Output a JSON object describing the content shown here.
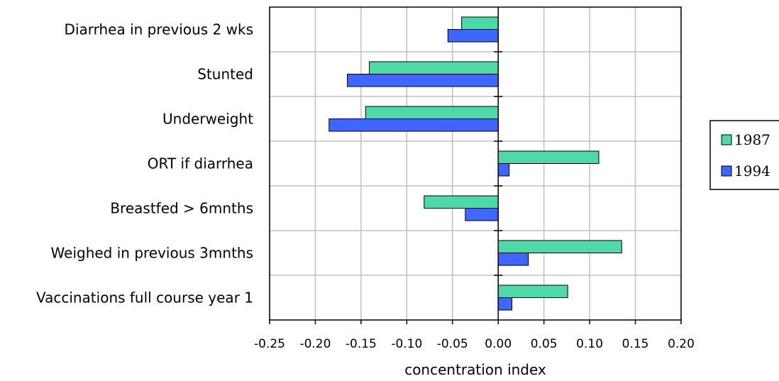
{
  "chart_data": {
    "type": "bar",
    "orientation": "horizontal",
    "categories": [
      "Diarrhea in previous 2 wks",
      "Stunted",
      "Underweight",
      "ORT if diarrhea",
      "Breastfed > 6mnths",
      "Weighed in previous 3mnths",
      "Vaccinations full course year 1"
    ],
    "series": [
      {
        "name": "1987",
        "color": "#4fd8a8",
        "values": [
          -0.04,
          -0.141,
          -0.145,
          0.11,
          -0.081,
          0.135,
          0.076
        ]
      },
      {
        "name": "1994",
        "color": "#3f66ff",
        "values": [
          -0.055,
          -0.165,
          -0.185,
          0.012,
          -0.036,
          0.033,
          0.015
        ]
      }
    ],
    "xlabel": "concentration index",
    "xlim": [
      -0.25,
      0.2
    ],
    "xticks": [
      "-0.25",
      "-0.20",
      "-0.15",
      "-0.10",
      "-0.05",
      "0.00",
      "0.05",
      "0.10",
      "0.15",
      "0.20"
    ],
    "grid": true,
    "legend_position": "right"
  }
}
